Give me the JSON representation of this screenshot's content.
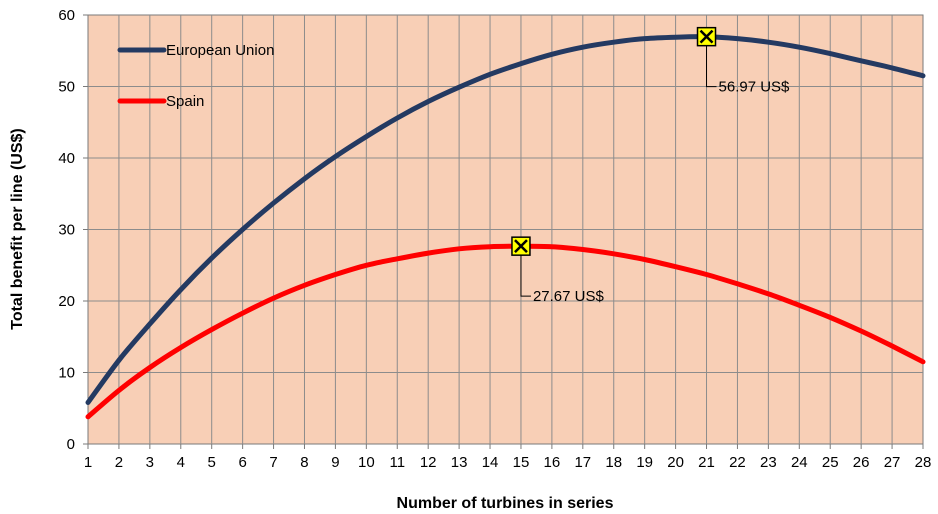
{
  "chart_data": {
    "type": "line",
    "title": "",
    "xlabel": "Number of turbines in series",
    "ylabel": "Total benefit per line (US$)",
    "xlim": [
      1,
      28
    ],
    "ylim": [
      0,
      60
    ],
    "x_ticks": [
      "1",
      "2",
      "3",
      "4",
      "5",
      "6",
      "7",
      "8",
      "9",
      "10",
      "11",
      "12",
      "13",
      "14",
      "15",
      "16",
      "17",
      "18",
      "19",
      "20",
      "21",
      "22",
      "23",
      "24",
      "25",
      "26",
      "27",
      "28"
    ],
    "y_ticks": [
      "0",
      "10",
      "20",
      "30",
      "40",
      "50",
      "60"
    ],
    "grid": true,
    "legend_position": "top-left",
    "plot_background": "#f8cfb6",
    "x": [
      1,
      2,
      3,
      4,
      5,
      6,
      7,
      8,
      9,
      10,
      11,
      12,
      13,
      14,
      15,
      16,
      17,
      18,
      19,
      20,
      21,
      22,
      23,
      24,
      25,
      26,
      27,
      28
    ],
    "series": [
      {
        "name": "European Union",
        "color": "#243a62",
        "values": [
          5.8,
          11.7,
          16.8,
          21.6,
          26.0,
          30.0,
          33.7,
          37.1,
          40.2,
          43.0,
          45.6,
          47.9,
          49.9,
          51.7,
          53.2,
          54.5,
          55.5,
          56.2,
          56.7,
          56.9,
          56.97,
          56.7,
          56.2,
          55.5,
          54.6,
          53.6,
          52.6,
          51.5
        ]
      },
      {
        "name": "Spain",
        "color": "#ff0000",
        "values": [
          3.8,
          7.5,
          10.7,
          13.5,
          16.0,
          18.3,
          20.4,
          22.2,
          23.7,
          25.0,
          25.9,
          26.7,
          27.3,
          27.6,
          27.67,
          27.6,
          27.2,
          26.6,
          25.8,
          24.8,
          23.7,
          22.4,
          21.0,
          19.4,
          17.7,
          15.8,
          13.7,
          11.5
        ]
      }
    ],
    "annotations": [
      {
        "label": "56.97 US$",
        "x": 21,
        "y": 56.97,
        "series": "European Union"
      },
      {
        "label": "27.67 US$",
        "x": 15,
        "y": 27.67,
        "series": "Spain"
      }
    ]
  }
}
